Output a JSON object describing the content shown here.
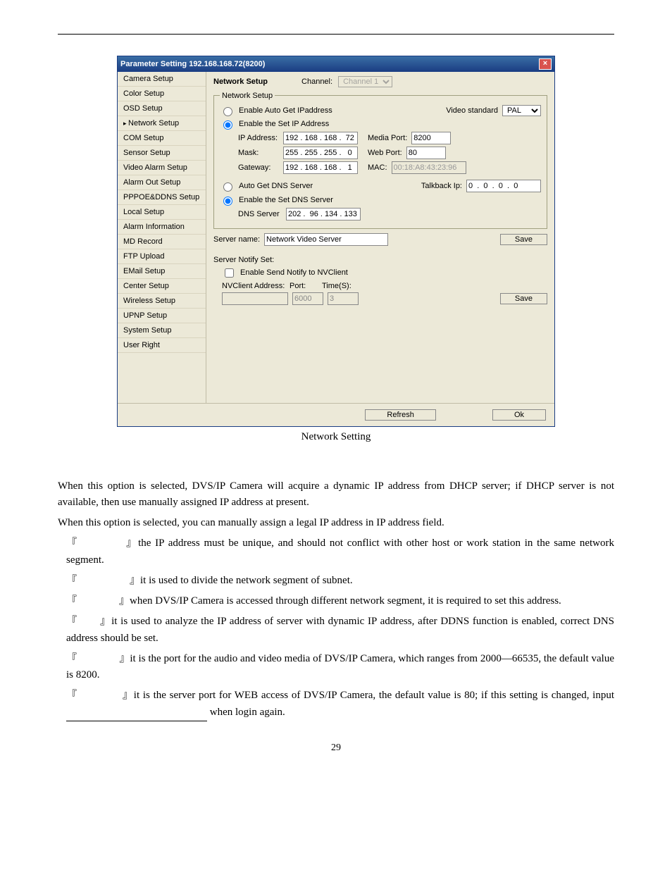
{
  "pageNumber": "29",
  "caption": "Network Setting",
  "window": {
    "title": "Parameter Setting 192.168.168.72(8200)",
    "sidebar": [
      "Camera Setup",
      "Color Setup",
      "OSD Setup",
      "Network Setup",
      "COM Setup",
      "Sensor Setup",
      "Video Alarm Setup",
      "Alarm Out Setup",
      "PPPOE&DDNS Setup",
      "Local Setup",
      "Alarm Information",
      "MD Record",
      "FTP Upload",
      "EMail Setup",
      "Center Setup",
      "Wireless Setup",
      "UPNP Setup",
      "System Setup",
      "User Right"
    ],
    "selectedSidebar": "Network Setup",
    "header": {
      "title": "Network Setup",
      "channelLabel": "Channel:",
      "channelValue": "Channel 1"
    },
    "net": {
      "legend": "Network Setup",
      "optAuto": "Enable Auto Get IPaddress",
      "optSet": "Enable the Set IP Address",
      "videoStandardLabel": "Video standard",
      "videoStandardValue": "PAL",
      "ipLabel": "IP Address:",
      "ipValue": "192 . 168 . 168 .  72",
      "mediaPortLabel": "Media Port:",
      "mediaPortValue": "8200",
      "maskLabel": "Mask:",
      "maskValue": "255 . 255 . 255 .   0",
      "webPortLabel": "Web Port:",
      "webPortValue": "80",
      "gatewayLabel": "Gateway:",
      "gatewayValue": "192 . 168 . 168 .   1",
      "macLabel": "MAC:",
      "macValue": "00:18:A8:43:23:96",
      "optAutoDns": "Auto Get DNS Server",
      "optSetDns": "Enable the Set DNS Server",
      "talkbackLabel": "Talkback Ip:",
      "talkbackValue": "0  .  0  .  0  .  0",
      "dnsLabel": "DNS Server",
      "dnsValue": "202 .  96 . 134 . 133"
    },
    "server": {
      "nameLabel": "Server name:",
      "nameValue": "Network Video Server",
      "save": "Save"
    },
    "notify": {
      "title": "Server Notify Set:",
      "enable": "Enable Send Notify to NVClient",
      "addrLabel": "NVClient Address:",
      "addrValue": "",
      "portLabel": "Port:",
      "portValue": "6000",
      "timeLabel": "Time(S):",
      "timeValue": "3",
      "save": "Save"
    },
    "refresh": "Refresh",
    "ok": "Ok"
  },
  "doc": {
    "p1a": "When this option is selected, DVS/IP Camera will acquire a dynamic IP address from DHCP server; if DHCP server is not available, then use manually assigned IP address at present.",
    "p2": "When this option is selected, you can manually assign a legal IP address in IP address field.",
    "d1": "the IP address must be unique, and should not conflict with other host or work station in the same network segment.",
    "d2": "it is used to divide the network segment of subnet.",
    "d3": "when DVS/IP Camera is accessed through different network segment, it is required to set this address.",
    "d4": "it is used to analyze the IP address of server with dynamic IP address, after DDNS function is enabled, correct DNS address should be set.",
    "d5": "it is the port for the audio and video media of DVS/IP Camera, which ranges from 2000—66535, the default value is 8200.",
    "d6a": "it is the server port for WEB access of DVS/IP Camera, the default value is 80; if this setting is changed, input ",
    "d6b": " when login again."
  }
}
